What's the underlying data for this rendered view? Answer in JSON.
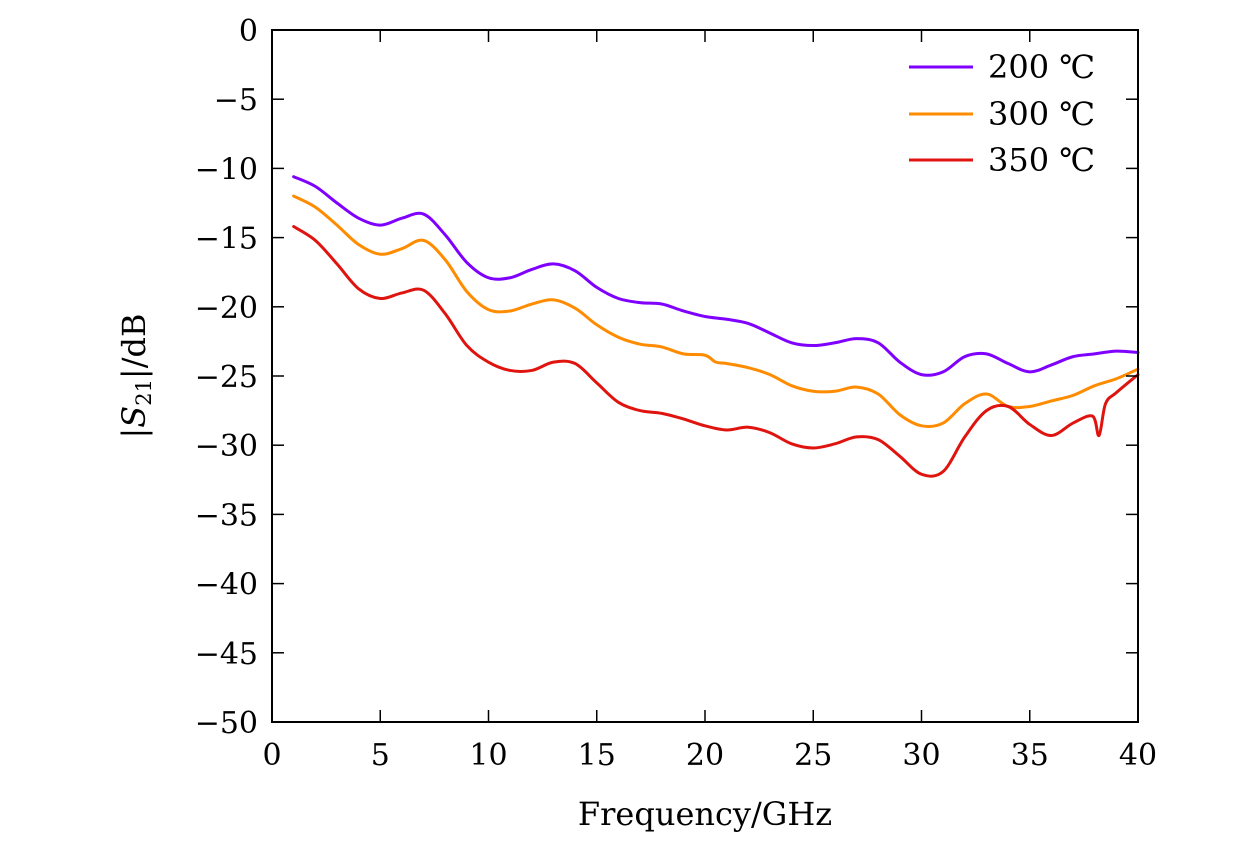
{
  "chart_data": {
    "type": "line",
    "title": "",
    "xlabel": "Frequency/GHz",
    "ylabel": "|S21|/dB",
    "ylabel_parts": {
      "pre": "|",
      "sym": "S",
      "sub": "21",
      "post": "|/dB"
    },
    "xlim": [
      0,
      40
    ],
    "ylim": [
      -50,
      0
    ],
    "xticks": [
      0,
      5,
      10,
      15,
      20,
      25,
      30,
      35,
      40
    ],
    "yticks": [
      0,
      -5,
      -10,
      -15,
      -20,
      -25,
      -30,
      -35,
      -40,
      -45,
      -50
    ],
    "xtick_labels": [
      "0",
      "5",
      "10",
      "15",
      "20",
      "25",
      "30",
      "35",
      "40"
    ],
    "ytick_labels": [
      "0",
      "−5",
      "−10",
      "−15",
      "−20",
      "−25",
      "−30",
      "−35",
      "−40",
      "−45",
      "−50"
    ],
    "grid": false,
    "legend_position": "top-right",
    "series": [
      {
        "name": "200 ℃",
        "color": "#7f00ff",
        "points": [
          [
            1,
            -10.6
          ],
          [
            2,
            -11.3
          ],
          [
            3,
            -12.5
          ],
          [
            4,
            -13.6
          ],
          [
            5,
            -14.1
          ],
          [
            6,
            -13.6
          ],
          [
            7,
            -13.3
          ],
          [
            8,
            -14.8
          ],
          [
            9,
            -16.8
          ],
          [
            10,
            -17.9
          ],
          [
            11,
            -17.9
          ],
          [
            12,
            -17.3
          ],
          [
            13,
            -16.9
          ],
          [
            14,
            -17.4
          ],
          [
            15,
            -18.6
          ],
          [
            16,
            -19.4
          ],
          [
            17,
            -19.7
          ],
          [
            18,
            -19.8
          ],
          [
            19,
            -20.3
          ],
          [
            20,
            -20.7
          ],
          [
            21,
            -20.9
          ],
          [
            22,
            -21.2
          ],
          [
            23,
            -21.9
          ],
          [
            24,
            -22.6
          ],
          [
            25,
            -22.8
          ],
          [
            26,
            -22.6
          ],
          [
            27,
            -22.3
          ],
          [
            28,
            -22.6
          ],
          [
            29,
            -24.0
          ],
          [
            30,
            -24.9
          ],
          [
            31,
            -24.7
          ],
          [
            32,
            -23.6
          ],
          [
            33,
            -23.4
          ],
          [
            34,
            -24.1
          ],
          [
            35,
            -24.7
          ],
          [
            36,
            -24.2
          ],
          [
            37,
            -23.6
          ],
          [
            38,
            -23.4
          ],
          [
            39,
            -23.2
          ],
          [
            40,
            -23.3
          ]
        ]
      },
      {
        "name": "300 ℃",
        "color": "#ff8c00",
        "points": [
          [
            1,
            -12.0
          ],
          [
            2,
            -12.8
          ],
          [
            3,
            -14.1
          ],
          [
            4,
            -15.5
          ],
          [
            5,
            -16.2
          ],
          [
            6,
            -15.8
          ],
          [
            7,
            -15.2
          ],
          [
            8,
            -16.6
          ],
          [
            9,
            -18.9
          ],
          [
            10,
            -20.2
          ],
          [
            11,
            -20.3
          ],
          [
            12,
            -19.8
          ],
          [
            13,
            -19.5
          ],
          [
            14,
            -20.1
          ],
          [
            15,
            -21.3
          ],
          [
            16,
            -22.2
          ],
          [
            17,
            -22.7
          ],
          [
            18,
            -22.9
          ],
          [
            19,
            -23.4
          ],
          [
            20,
            -23.5
          ],
          [
            20.5,
            -24.0
          ],
          [
            21,
            -24.1
          ],
          [
            22,
            -24.4
          ],
          [
            23,
            -24.9
          ],
          [
            24,
            -25.7
          ],
          [
            25,
            -26.1
          ],
          [
            26,
            -26.1
          ],
          [
            27,
            -25.8
          ],
          [
            28,
            -26.3
          ],
          [
            29,
            -27.8
          ],
          [
            30,
            -28.6
          ],
          [
            31,
            -28.4
          ],
          [
            32,
            -27.0
          ],
          [
            33,
            -26.3
          ],
          [
            34,
            -27.2
          ],
          [
            35,
            -27.2
          ],
          [
            36,
            -26.8
          ],
          [
            37,
            -26.4
          ],
          [
            38,
            -25.7
          ],
          [
            39,
            -25.2
          ],
          [
            40,
            -24.5
          ]
        ]
      },
      {
        "name": "350 ℃",
        "color": "#e0140f",
        "points": [
          [
            1,
            -14.2
          ],
          [
            2,
            -15.2
          ],
          [
            3,
            -16.9
          ],
          [
            4,
            -18.7
          ],
          [
            5,
            -19.4
          ],
          [
            6,
            -19.0
          ],
          [
            7,
            -18.8
          ],
          [
            8,
            -20.5
          ],
          [
            9,
            -22.8
          ],
          [
            10,
            -24.0
          ],
          [
            11,
            -24.6
          ],
          [
            12,
            -24.6
          ],
          [
            13,
            -24.0
          ],
          [
            14,
            -24.1
          ],
          [
            15,
            -25.5
          ],
          [
            16,
            -26.9
          ],
          [
            17,
            -27.5
          ],
          [
            18,
            -27.7
          ],
          [
            19,
            -28.1
          ],
          [
            20,
            -28.6
          ],
          [
            21,
            -28.9
          ],
          [
            22,
            -28.7
          ],
          [
            23,
            -29.1
          ],
          [
            24,
            -29.9
          ],
          [
            25,
            -30.2
          ],
          [
            26,
            -29.9
          ],
          [
            27,
            -29.4
          ],
          [
            28,
            -29.6
          ],
          [
            29,
            -30.8
          ],
          [
            30,
            -32.1
          ],
          [
            31,
            -31.9
          ],
          [
            32,
            -29.4
          ],
          [
            33,
            -27.5
          ],
          [
            34,
            -27.2
          ],
          [
            35,
            -28.5
          ],
          [
            36,
            -29.3
          ],
          [
            37,
            -28.4
          ],
          [
            37.9,
            -27.9
          ],
          [
            38.2,
            -29.3
          ],
          [
            38.5,
            -27.0
          ],
          [
            39,
            -26.2
          ],
          [
            40,
            -24.9
          ]
        ]
      }
    ]
  }
}
